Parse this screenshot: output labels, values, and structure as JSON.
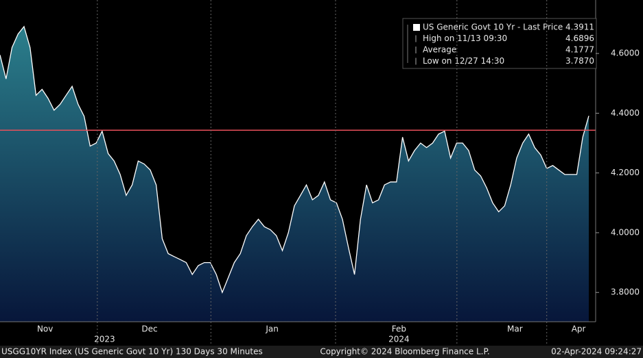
{
  "chart_data": {
    "type": "area",
    "values": [
      4.595,
      4.515,
      4.62,
      4.665,
      4.69,
      4.62,
      4.46,
      4.48,
      4.45,
      4.41,
      4.43,
      4.46,
      4.49,
      4.43,
      4.39,
      4.29,
      4.3,
      4.34,
      4.265,
      4.24,
      4.195,
      4.125,
      4.16,
      4.24,
      4.23,
      4.21,
      4.16,
      3.98,
      3.93,
      3.92,
      3.91,
      3.9,
      3.86,
      3.89,
      3.9,
      3.9,
      3.86,
      3.8,
      3.85,
      3.9,
      3.93,
      3.99,
      4.02,
      4.045,
      4.02,
      4.01,
      3.99,
      3.94,
      4.0,
      4.09,
      4.125,
      4.16,
      4.11,
      4.125,
      4.17,
      4.11,
      4.1,
      4.045,
      3.95,
      3.86,
      4.045,
      4.16,
      4.1,
      4.11,
      4.16,
      4.17,
      4.17,
      4.32,
      4.24,
      4.275,
      4.3,
      4.285,
      4.3,
      4.33,
      4.34,
      4.25,
      4.3,
      4.3,
      4.275,
      4.21,
      4.19,
      4.15,
      4.1,
      4.07,
      4.09,
      4.16,
      4.25,
      4.3,
      4.33,
      4.285,
      4.26,
      4.215,
      4.225,
      4.21,
      4.195,
      4.195,
      4.195,
      4.32,
      4.3911
    ],
    "line_color": "#ffffff",
    "fill_top": "#2b7f8c",
    "fill_bottom": "#07163a",
    "reference_line": 4.343,
    "reference_color": "#e8505a",
    "xlim": [
      0,
      98
    ],
    "xticks": [
      {
        "value": 7.5,
        "label": "Nov"
      },
      {
        "value": 24.9,
        "label": "Dec"
      },
      {
        "value": 45.3,
        "label": "Jan"
      },
      {
        "value": 66.4,
        "label": "Feb"
      },
      {
        "value": 85.7,
        "label": "Mar"
      },
      {
        "value": 96.3,
        "label": "Apr"
      }
    ],
    "year_labels": [
      {
        "value": 17.4,
        "label": "2023"
      },
      {
        "value": 66.4,
        "label": "2024"
      }
    ],
    "ylim": [
      3.702,
      4.779
    ],
    "yticks": [
      {
        "value": 3.8,
        "label": "3.8000"
      },
      {
        "value": 4.0,
        "label": "4.0000"
      },
      {
        "value": 4.2,
        "label": "4.2000"
      },
      {
        "value": 4.4,
        "label": "4.4000"
      },
      {
        "value": 4.6,
        "label": "4.6000"
      }
    ],
    "legend": [
      {
        "name": "US Generic Govt 10 Yr - Last Price",
        "value": "4.3911"
      },
      {
        "name": "High on 11/13 09:30",
        "value": "4.6896"
      },
      {
        "name": "Average",
        "value": "4.1777"
      },
      {
        "name": "Low on 12/27 14:30",
        "value": "3.7870"
      }
    ],
    "footer": {
      "left": "USGG10YR Index (US Generic Govt 10 Yr) 130 Days 30 Minutes",
      "center": "Copyright© 2024 Bloomberg Finance L.P.",
      "right": "02-Apr-2024 09:24:27"
    }
  }
}
